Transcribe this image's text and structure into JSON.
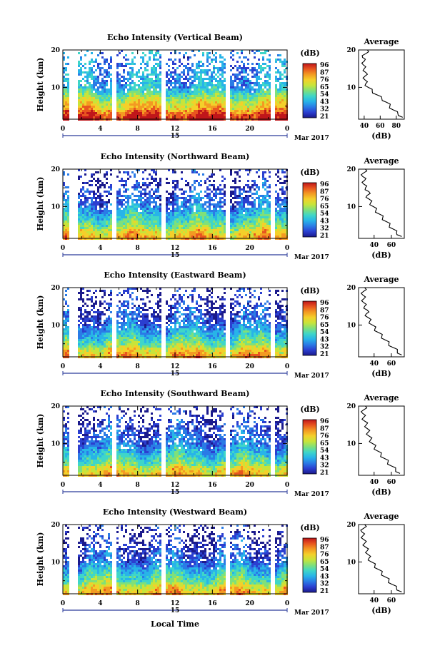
{
  "figure": {
    "xlabel": "Local Time",
    "date_month_label": "Mar 2017",
    "date_day_label": "15",
    "ylabel": "Height (km)",
    "cbar_unit": "(dB)",
    "avg_title": "Average",
    "avg_xlabel": "(dB)",
    "colorbar_ticks": [
      "96",
      "87",
      "76",
      "65",
      "54",
      "43",
      "32",
      "21"
    ],
    "colorbar_colors": [
      "#1b1a8c",
      "#2b3fd0",
      "#2a7be6",
      "#28b4e8",
      "#3fd6c8",
      "#7fe07a",
      "#c8e43a",
      "#f4d02a",
      "#f39a22",
      "#e85520",
      "#c0161a"
    ]
  },
  "chart_data": [
    {
      "type": "heatmap",
      "title": "Echo Intensity (Vertical Beam)",
      "xlabel": "Local Time",
      "ylabel": "Height (km)",
      "x_ticks": [
        "0",
        "4",
        "8",
        "12",
        "16",
        "20",
        "0"
      ],
      "y_ticks": [
        "20",
        "10"
      ],
      "xlim": [
        0,
        24
      ],
      "ylim": [
        1.5,
        20
      ],
      "z_range_db": [
        21,
        96
      ],
      "data_gaps_hours": [
        [
          0.7,
          1.5
        ],
        [
          5.3,
          5.8
        ],
        [
          10.5,
          10.9
        ],
        [
          17.4,
          17.9
        ],
        [
          22.3,
          22.7
        ]
      ],
      "colorbar_ticks": [
        "96",
        "87",
        "76",
        "65",
        "54",
        "43",
        "32",
        "21"
      ],
      "average_profile": {
        "title": "Average",
        "xlabel": "(dB)",
        "x_ticks": [
          "40",
          "60",
          "80"
        ],
        "y_ticks": [
          "20",
          "10"
        ],
        "xlim": [
          33,
          90
        ],
        "ylim": [
          1.5,
          20
        ],
        "height_km": [
          2,
          3,
          4,
          5,
          6,
          7,
          8,
          9,
          10,
          11,
          12,
          13,
          14,
          15,
          16,
          17,
          18,
          19,
          20
        ],
        "db": [
          88,
          82,
          76,
          72,
          68,
          62,
          56,
          50,
          45,
          42,
          41,
          41,
          42,
          40,
          39,
          40,
          38,
          42,
          44
        ]
      }
    },
    {
      "type": "heatmap",
      "title": "Echo Intensity (Northward Beam)",
      "xlabel": "Local Time",
      "ylabel": "Height (km)",
      "x_ticks": [
        "0",
        "4",
        "8",
        "12",
        "16",
        "20",
        "0"
      ],
      "y_ticks": [
        "20",
        "10"
      ],
      "xlim": [
        0,
        24
      ],
      "ylim": [
        1.5,
        20
      ],
      "z_range_db": [
        21,
        96
      ],
      "data_gaps_hours": [
        [
          0.7,
          1.5
        ],
        [
          5.3,
          5.8
        ],
        [
          10.5,
          10.9
        ],
        [
          17.4,
          17.9
        ],
        [
          22.3,
          22.7
        ]
      ],
      "colorbar_ticks": [
        "96",
        "87",
        "76",
        "65",
        "54",
        "43",
        "32",
        "21"
      ],
      "average_profile": {
        "title": "Average",
        "xlabel": "(dB)",
        "x_ticks": [
          "40",
          "60"
        ],
        "y_ticks": [
          "20",
          "10"
        ],
        "xlim": [
          22,
          75
        ],
        "ylim": [
          1.5,
          20
        ],
        "height_km": [
          2,
          3,
          4,
          5,
          6,
          7,
          8,
          9,
          10,
          11,
          12,
          13,
          14,
          15,
          16,
          17,
          18,
          19,
          20
        ],
        "db": [
          72,
          66,
          62,
          58,
          54,
          50,
          46,
          42,
          39,
          36,
          34,
          32,
          34,
          30,
          28,
          29,
          27,
          28,
          30
        ]
      }
    },
    {
      "type": "heatmap",
      "title": "Echo Intensity (Eastward Beam)",
      "xlabel": "Local Time",
      "ylabel": "Height (km)",
      "x_ticks": [
        "0",
        "4",
        "8",
        "12",
        "16",
        "20",
        "0"
      ],
      "y_ticks": [
        "20",
        "10"
      ],
      "xlim": [
        0,
        24
      ],
      "ylim": [
        1.5,
        20
      ],
      "z_range_db": [
        21,
        96
      ],
      "data_gaps_hours": [
        [
          0.7,
          1.5
        ],
        [
          5.3,
          5.8
        ],
        [
          10.5,
          10.9
        ],
        [
          17.4,
          17.9
        ],
        [
          22.3,
          22.7
        ]
      ],
      "colorbar_ticks": [
        "96",
        "87",
        "76",
        "65",
        "54",
        "43",
        "32",
        "21"
      ],
      "average_profile": {
        "title": "Average",
        "xlabel": "(dB)",
        "x_ticks": [
          "40",
          "60"
        ],
        "y_ticks": [
          "20",
          "10"
        ],
        "xlim": [
          22,
          75
        ],
        "ylim": [
          1.5,
          20
        ],
        "height_km": [
          2,
          3,
          4,
          5,
          6,
          7,
          8,
          9,
          10,
          11,
          12,
          13,
          14,
          15,
          16,
          17,
          18,
          19,
          20
        ],
        "db": [
          72,
          67,
          62,
          57,
          53,
          49,
          45,
          41,
          38,
          35,
          33,
          31,
          32,
          29,
          28,
          28,
          27,
          28,
          29
        ]
      }
    },
    {
      "type": "heatmap",
      "title": "Echo Intensity (Southward Beam)",
      "xlabel": "Local Time",
      "ylabel": "Height (km)",
      "x_ticks": [
        "0",
        "4",
        "8",
        "12",
        "16",
        "20",
        "0"
      ],
      "y_ticks": [
        "20",
        "10"
      ],
      "xlim": [
        0,
        24
      ],
      "ylim": [
        1.5,
        20
      ],
      "z_range_db": [
        21,
        96
      ],
      "data_gaps_hours": [
        [
          0.7,
          1.5
        ],
        [
          5.3,
          5.8
        ],
        [
          10.5,
          10.9
        ],
        [
          17.4,
          17.9
        ],
        [
          22.3,
          22.7
        ]
      ],
      "colorbar_ticks": [
        "96",
        "87",
        "76",
        "65",
        "54",
        "43",
        "32",
        "21"
      ],
      "average_profile": {
        "title": "Average",
        "xlabel": "(dB)",
        "x_ticks": [
          "40",
          "60"
        ],
        "y_ticks": [
          "20",
          "10"
        ],
        "xlim": [
          22,
          75
        ],
        "ylim": [
          1.5,
          20
        ],
        "height_km": [
          2,
          3,
          4,
          5,
          6,
          7,
          8,
          9,
          10,
          11,
          12,
          13,
          14,
          15,
          16,
          17,
          18,
          19,
          20
        ],
        "db": [
          70,
          65,
          60,
          56,
          52,
          48,
          44,
          41,
          38,
          36,
          34,
          33,
          32,
          31,
          29,
          28,
          27,
          28,
          30
        ]
      }
    },
    {
      "type": "heatmap",
      "title": "Echo Intensity (Westward Beam)",
      "xlabel": "Local Time",
      "ylabel": "Height (km)",
      "x_ticks": [
        "0",
        "4",
        "8",
        "12",
        "16",
        "20",
        "0"
      ],
      "y_ticks": [
        "20",
        "10"
      ],
      "xlim": [
        0,
        24
      ],
      "ylim": [
        1.5,
        20
      ],
      "z_range_db": [
        21,
        96
      ],
      "data_gaps_hours": [
        [
          0.7,
          1.5
        ],
        [
          5.3,
          5.8
        ],
        [
          10.5,
          10.9
        ],
        [
          17.4,
          17.9
        ],
        [
          22.3,
          22.7
        ]
      ],
      "colorbar_ticks": [
        "96",
        "87",
        "76",
        "65",
        "54",
        "43",
        "32",
        "21"
      ],
      "average_profile": {
        "title": "Average",
        "xlabel": "(dB)",
        "x_ticks": [
          "40",
          "60"
        ],
        "y_ticks": [
          "20",
          "10"
        ],
        "xlim": [
          22,
          75
        ],
        "ylim": [
          1.5,
          20
        ],
        "height_km": [
          2,
          3,
          4,
          5,
          6,
          7,
          8,
          9,
          10,
          11,
          12,
          13,
          14,
          15,
          16,
          17,
          18,
          19,
          20
        ],
        "db": [
          72,
          66,
          61,
          57,
          53,
          49,
          45,
          41,
          37,
          34,
          33,
          32,
          30,
          29,
          28,
          27,
          26,
          28,
          29
        ]
      }
    }
  ]
}
